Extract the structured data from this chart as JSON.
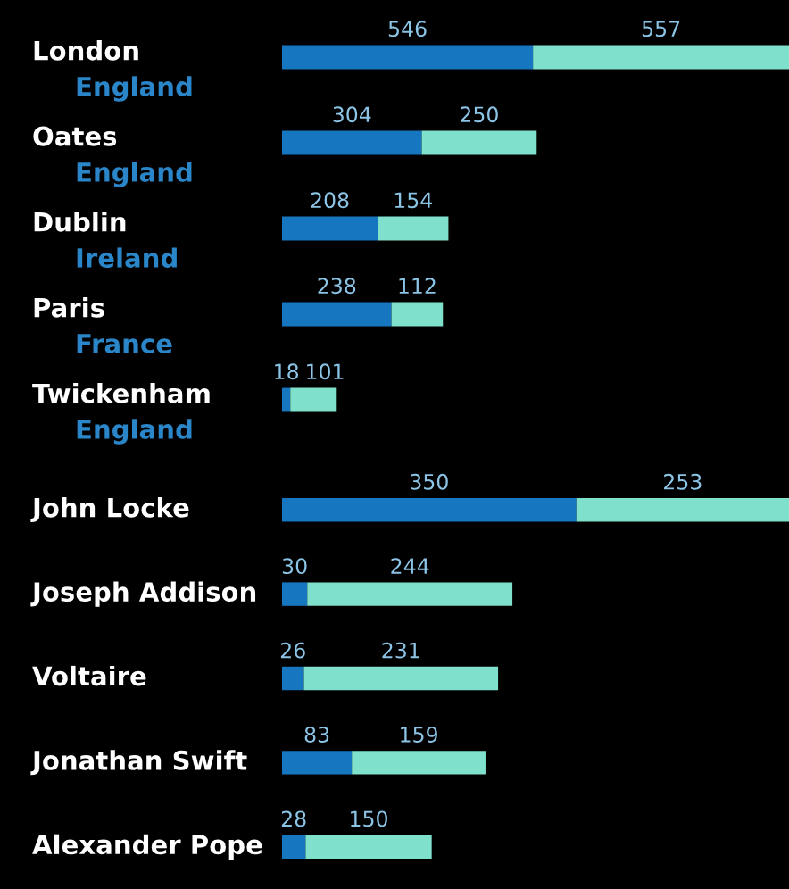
{
  "chart_data": [
    {
      "type": "bar",
      "orientation": "horizontal",
      "stacked": true,
      "data_labels": true,
      "tick_labels": false,
      "xlim": [
        0,
        1103
      ],
      "categories": [
        "London\nEngland",
        "Oates\nEngland",
        "Dublin\nIreland",
        "Paris\nFrance",
        "Twickenham\nEngland"
      ],
      "series": [
        {
          "color": "#1677c0",
          "values": [
            546,
            304,
            208,
            238,
            18
          ]
        },
        {
          "color": "#7fe0cc",
          "values": [
            557,
            250,
            154,
            112,
            101
          ]
        }
      ]
    },
    {
      "type": "bar",
      "orientation": "horizontal",
      "stacked": true,
      "data_labels": true,
      "tick_labels": false,
      "xlim": [
        0,
        603
      ],
      "categories": [
        "John Locke",
        "Joseph Addison",
        "Voltaire",
        "Jonathan Swift",
        "Alexander Pope"
      ],
      "series": [
        {
          "color": "#1677c0",
          "values": [
            350,
            30,
            26,
            83,
            28
          ]
        },
        {
          "color": "#7fe0cc",
          "values": [
            253,
            244,
            231,
            159,
            150
          ]
        }
      ]
    }
  ]
}
